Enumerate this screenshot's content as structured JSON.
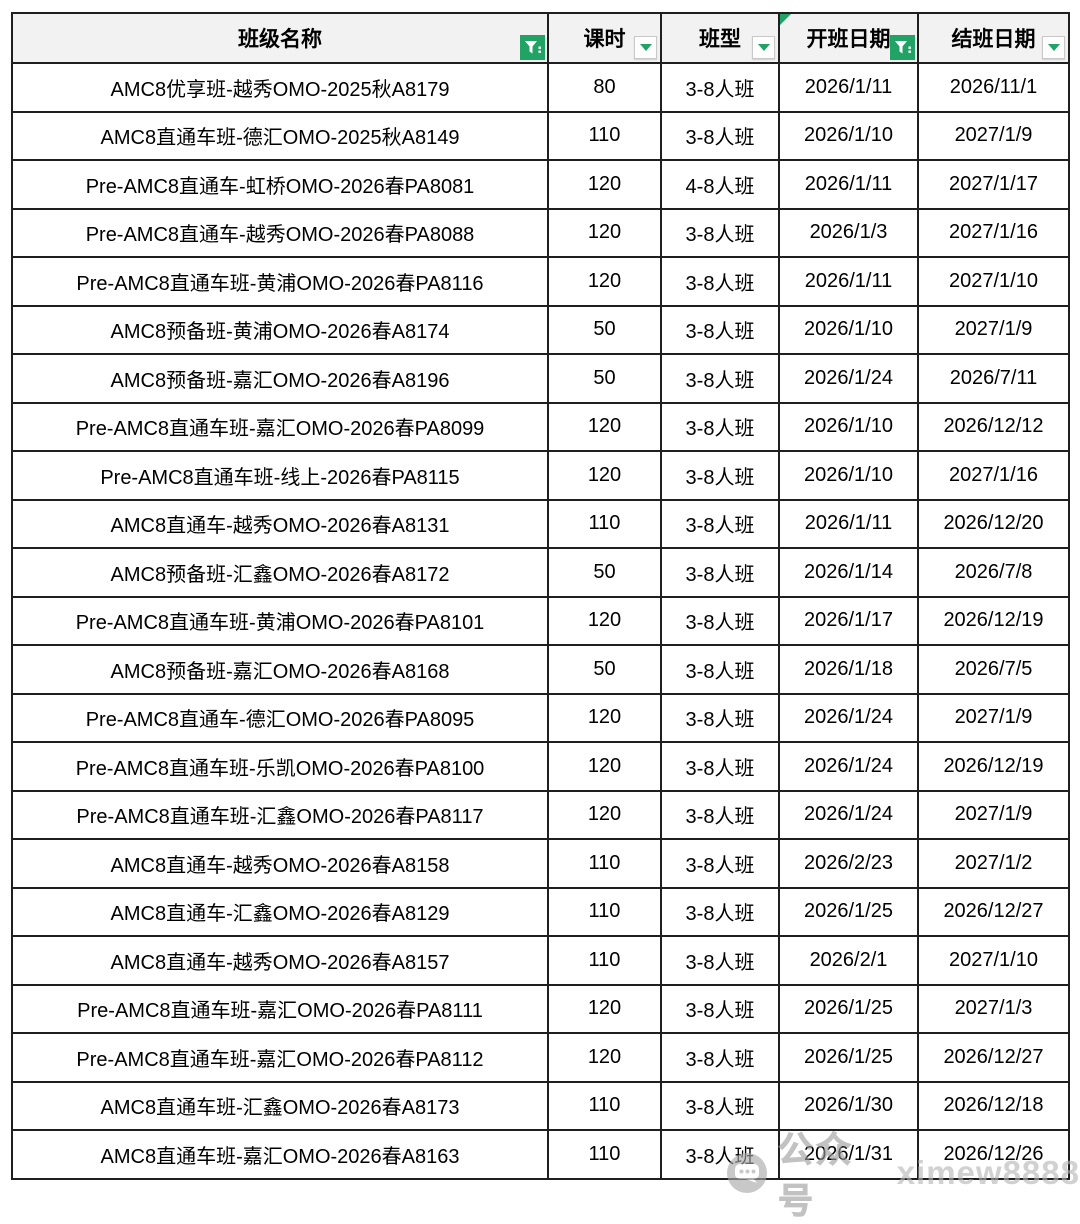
{
  "table": {
    "columns": [
      {
        "label": "班级名称",
        "control": "filter-applied"
      },
      {
        "label": "课时",
        "control": "dropdown"
      },
      {
        "label": "班型",
        "control": "dropdown"
      },
      {
        "label": "开班日期",
        "control": "filter-applied",
        "corner_flag": true
      },
      {
        "label": "结班日期",
        "control": "dropdown"
      }
    ],
    "rows": [
      [
        "AMC8优享班-越秀OMO-2025秋A8179",
        "80",
        "3-8人班",
        "2026/1/11",
        "2026/11/1"
      ],
      [
        "AMC8直通车班-德汇OMO-2025秋A8149",
        "110",
        "3-8人班",
        "2026/1/10",
        "2027/1/9"
      ],
      [
        "Pre-AMC8直通车-虹桥OMO-2026春PA8081",
        "120",
        "4-8人班",
        "2026/1/11",
        "2027/1/17"
      ],
      [
        "Pre-AMC8直通车-越秀OMO-2026春PA8088",
        "120",
        "3-8人班",
        "2026/1/3",
        "2027/1/16"
      ],
      [
        "Pre-AMC8直通车班-黄浦OMO-2026春PA8116",
        "120",
        "3-8人班",
        "2026/1/11",
        "2027/1/10"
      ],
      [
        "AMC8预备班-黄浦OMO-2026春A8174",
        "50",
        "3-8人班",
        "2026/1/10",
        "2027/1/9"
      ],
      [
        "AMC8预备班-嘉汇OMO-2026春A8196",
        "50",
        "3-8人班",
        "2026/1/24",
        "2026/7/11"
      ],
      [
        "Pre-AMC8直通车班-嘉汇OMO-2026春PA8099",
        "120",
        "3-8人班",
        "2026/1/10",
        "2026/12/12"
      ],
      [
        "Pre-AMC8直通车班-线上-2026春PA8115",
        "120",
        "3-8人班",
        "2026/1/10",
        "2027/1/16"
      ],
      [
        "AMC8直通车-越秀OMO-2026春A8131",
        "110",
        "3-8人班",
        "2026/1/11",
        "2026/12/20"
      ],
      [
        "AMC8预备班-汇鑫OMO-2026春A8172",
        "50",
        "3-8人班",
        "2026/1/14",
        "2026/7/8"
      ],
      [
        "Pre-AMC8直通车班-黄浦OMO-2026春PA8101",
        "120",
        "3-8人班",
        "2026/1/17",
        "2026/12/19"
      ],
      [
        "AMC8预备班-嘉汇OMO-2026春A8168",
        "50",
        "3-8人班",
        "2026/1/18",
        "2026/7/5"
      ],
      [
        "Pre-AMC8直通车-德汇OMO-2026春PA8095",
        "120",
        "3-8人班",
        "2026/1/24",
        "2027/1/9"
      ],
      [
        "Pre-AMC8直通车班-乐凯OMO-2026春PA8100",
        "120",
        "3-8人班",
        "2026/1/24",
        "2026/12/19"
      ],
      [
        "Pre-AMC8直通车班-汇鑫OMO-2026春PA8117",
        "120",
        "3-8人班",
        "2026/1/24",
        "2027/1/9"
      ],
      [
        "AMC8直通车-越秀OMO-2026春A8158",
        "110",
        "3-8人班",
        "2026/2/23",
        "2027/1/2"
      ],
      [
        "AMC8直通车-汇鑫OMO-2026春A8129",
        "110",
        "3-8人班",
        "2026/1/25",
        "2026/12/27"
      ],
      [
        "AMC8直通车-越秀OMO-2026春A8157",
        "110",
        "3-8人班",
        "2026/2/1",
        "2027/1/10"
      ],
      [
        "Pre-AMC8直通车班-嘉汇OMO-2026春PA8111",
        "120",
        "3-8人班",
        "2026/1/25",
        "2027/1/3"
      ],
      [
        "Pre-AMC8直通车班-嘉汇OMO-2026春PA8112",
        "120",
        "3-8人班",
        "2026/1/25",
        "2026/12/27"
      ],
      [
        "AMC8直通车班-汇鑫OMO-2026春A8173",
        "110",
        "3-8人班",
        "2026/1/30",
        "2026/12/18"
      ],
      [
        "AMC8直通车班-嘉汇OMO-2026春A8163",
        "110",
        "3-8人班",
        "2026/1/31",
        "2026/12/26"
      ]
    ]
  },
  "watermark": {
    "icon": "wechat-chat-icon",
    "label": "公众号",
    "handle": "ximew8888"
  },
  "colors": {
    "accent_green": "#21a366",
    "header_bg": "#f2f2f2",
    "border": "#1f1f1f",
    "watermark_gray": "#a8a8a8"
  }
}
